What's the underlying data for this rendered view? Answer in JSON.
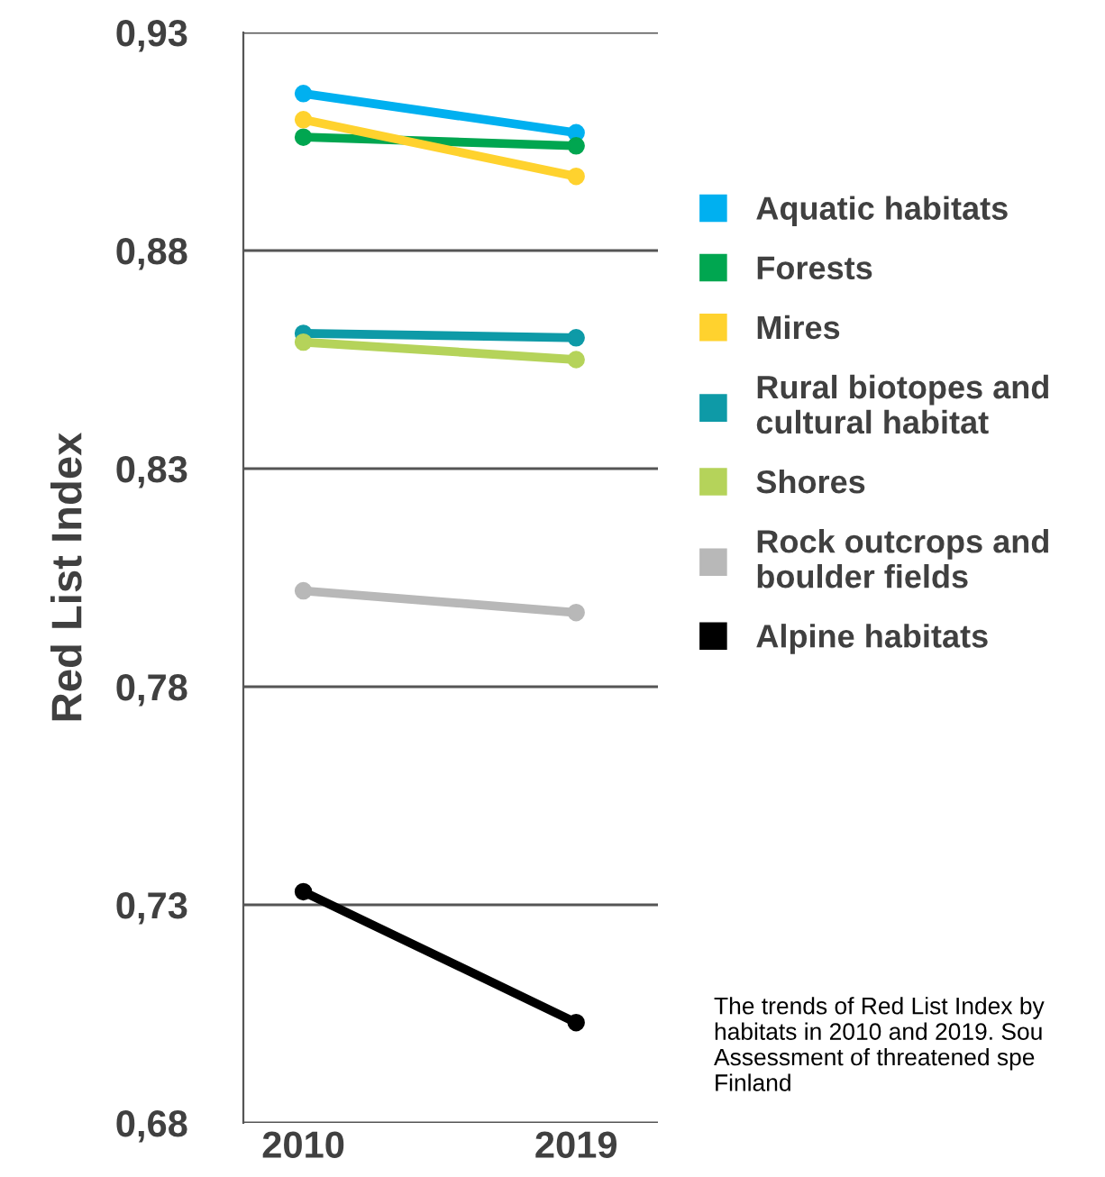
{
  "chart_data": {
    "type": "line",
    "ylabel": "Red List Index",
    "categories": [
      "2010",
      "2019"
    ],
    "series": [
      {
        "name": "Aquatic habitats",
        "color": "#00b0f0",
        "values": [
          0.916,
          0.907
        ]
      },
      {
        "name": "Forests",
        "color": "#00a650",
        "values": [
          0.906,
          0.904
        ]
      },
      {
        "name": "Mires",
        "color": "#ffd22e",
        "values": [
          0.91,
          0.897
        ]
      },
      {
        "name": "Rural biotopes and\ncultural habitat",
        "color": "#0e9aa7",
        "values": [
          0.861,
          0.86
        ]
      },
      {
        "name": "Shores",
        "color": "#b5d35a",
        "values": [
          0.859,
          0.855
        ]
      },
      {
        "name": "Rock outcrops and\nboulder fields",
        "color": "#b8b8b8",
        "values": [
          0.802,
          0.797
        ]
      },
      {
        "name": "Alpine habitats",
        "color": "#000000",
        "values": [
          0.733,
          0.703
        ]
      }
    ],
    "ylim": [
      0.68,
      0.93
    ],
    "yticks": [
      {
        "value": 0.68,
        "label": "0,68"
      },
      {
        "value": 0.73,
        "label": "0,73"
      },
      {
        "value": 0.78,
        "label": "0,78"
      },
      {
        "value": 0.83,
        "label": "0,83"
      },
      {
        "value": 0.88,
        "label": "0,88"
      },
      {
        "value": 0.93,
        "label": "0,93"
      }
    ],
    "grid": "y",
    "legend": "right",
    "marker": "circle",
    "line_style": "solid",
    "annotations": [
      "The trends of Red List Index by\nhabitats in 2010 and 2019. Sou\nAssessment of threatened spe\nFinland"
    ]
  }
}
